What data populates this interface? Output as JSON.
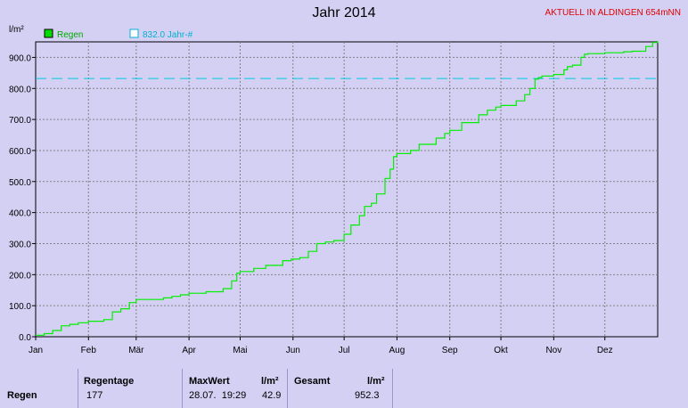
{
  "header": {
    "title": "Jahr 2014",
    "location": "AKTUELL IN ALDINGEN 654mNN"
  },
  "colors": {
    "series": "#00ee00",
    "reference": "#00c8e0",
    "grid": "#808080",
    "background": "#d4d0f4",
    "location": "#e00000"
  },
  "chart_data": {
    "type": "line",
    "title": "Jahr 2014",
    "ylabel": "l/m²",
    "xlabel": "",
    "ylim": [
      0,
      950
    ],
    "xlim": [
      0,
      365
    ],
    "grid": true,
    "legend_position": "top-left",
    "x_unit": "day of year 2014",
    "yticks": [
      "0.0",
      "100.0",
      "200.0",
      "300.0",
      "400.0",
      "500.0",
      "600.0",
      "700.0",
      "800.0",
      "900.0"
    ],
    "xticks": [
      "Jan",
      "Feb",
      "Mär",
      "Apr",
      "Mai",
      "Jun",
      "Jul",
      "Aug",
      "Sep",
      "Okt",
      "Nov",
      "Dez"
    ],
    "xtick_days": [
      0,
      31,
      59,
      90,
      120,
      151,
      181,
      212,
      243,
      273,
      304,
      334
    ],
    "series": [
      {
        "name": "Regen",
        "x": [
          0,
          5,
          10,
          15,
          20,
          25,
          31,
          40,
          45,
          50,
          55,
          59,
          70,
          75,
          80,
          85,
          90,
          100,
          110,
          115,
          118,
          120,
          128,
          135,
          145,
          150,
          155,
          160,
          165,
          170,
          175,
          181,
          185,
          190,
          193,
          197,
          200,
          205,
          208,
          210,
          212,
          220,
          225,
          235,
          240,
          243,
          250,
          260,
          265,
          270,
          273,
          282,
          287,
          290,
          293,
          295,
          297,
          304,
          310,
          312,
          315,
          320,
          322,
          324,
          334,
          345,
          350,
          358,
          362,
          365
        ],
        "y": [
          5,
          10,
          20,
          35,
          40,
          45,
          50,
          55,
          80,
          90,
          110,
          120,
          120,
          125,
          130,
          135,
          140,
          145,
          155,
          180,
          205,
          210,
          220,
          230,
          245,
          250,
          255,
          275,
          300,
          305,
          310,
          330,
          360,
          390,
          420,
          430,
          460,
          510,
          540,
          580,
          590,
          600,
          620,
          640,
          655,
          665,
          690,
          715,
          730,
          740,
          745,
          760,
          780,
          800,
          830,
          835,
          840,
          845,
          860,
          870,
          875,
          900,
          910,
          912,
          915,
          918,
          920,
          935,
          948,
          952.3
        ]
      },
      {
        "name": "832.0 Jahr-#",
        "constant": 832.0,
        "style": "dashed"
      }
    ]
  },
  "stats": {
    "row_label": "Regen",
    "regentage_label": "Regentage",
    "regentage_value": "177",
    "maxwert_label": "MaxWert",
    "maxwert_unit": "l/m²",
    "maxwert_datetime": "28.07.  19:29",
    "maxwert_value": "42.9",
    "gesamt_label": "Gesamt",
    "gesamt_unit": "l/m²",
    "gesamt_value": "952.3"
  }
}
